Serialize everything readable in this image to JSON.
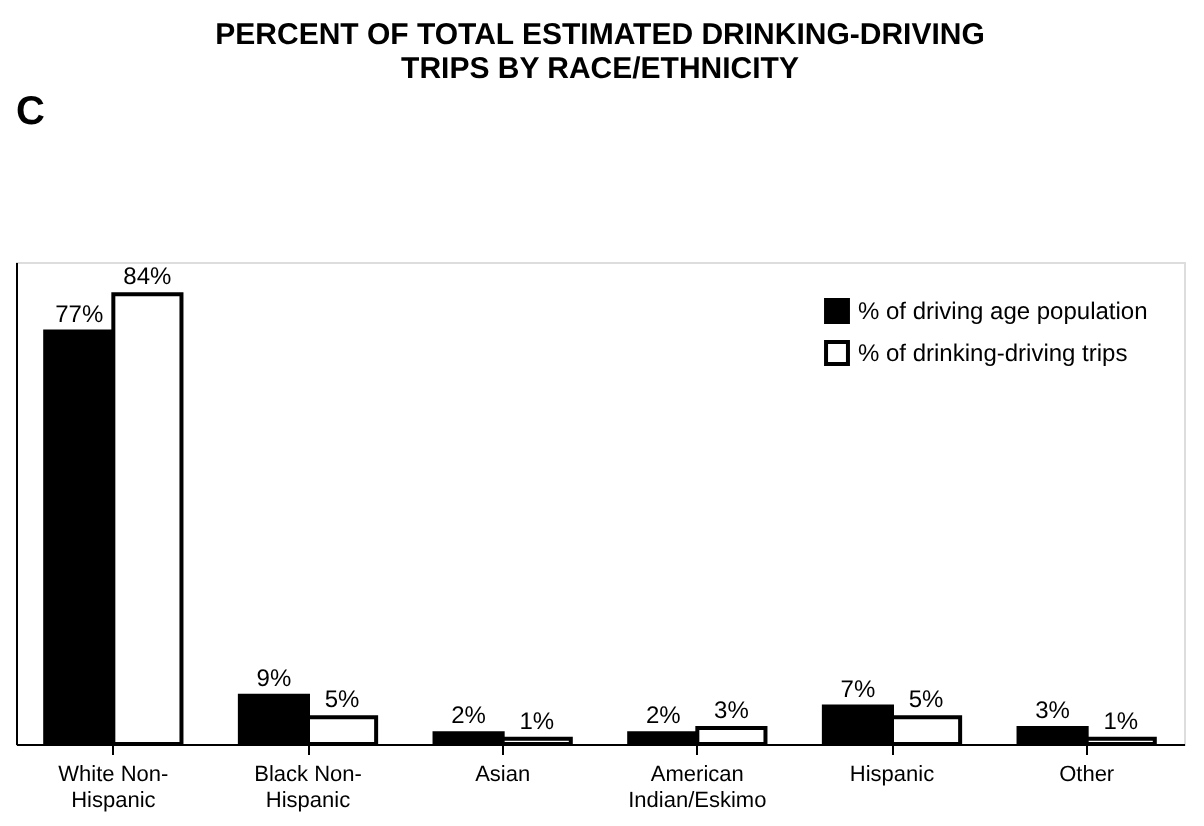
{
  "chart_data": {
    "type": "bar",
    "title": "PERCENT OF TOTAL ESTIMATED DRINKING-DRIVING\nTRIPS BY RACE/ETHNICITY",
    "annotations": [
      "C"
    ],
    "categories": [
      "White Non-\nHispanic",
      "Black Non-\nHispanic",
      "Asian",
      "American\nIndian/Eskimo",
      "Hispanic",
      "Other"
    ],
    "series": [
      {
        "name": "% of driving age population",
        "color": "#000000",
        "values": [
          77,
          9,
          2,
          2,
          7,
          3
        ],
        "value_labels": [
          "77%",
          "9%",
          "2%",
          "2%",
          "7%",
          "3%"
        ]
      },
      {
        "name": "% of drinking-driving trips",
        "color": "#ffffff",
        "values": [
          84,
          5,
          1,
          3,
          5,
          1
        ],
        "value_labels": [
          "84%",
          "5%",
          "1%",
          "3%",
          "5%",
          "1%"
        ]
      }
    ],
    "legend": "top right",
    "tick_labels": "x",
    "grid": false
  }
}
